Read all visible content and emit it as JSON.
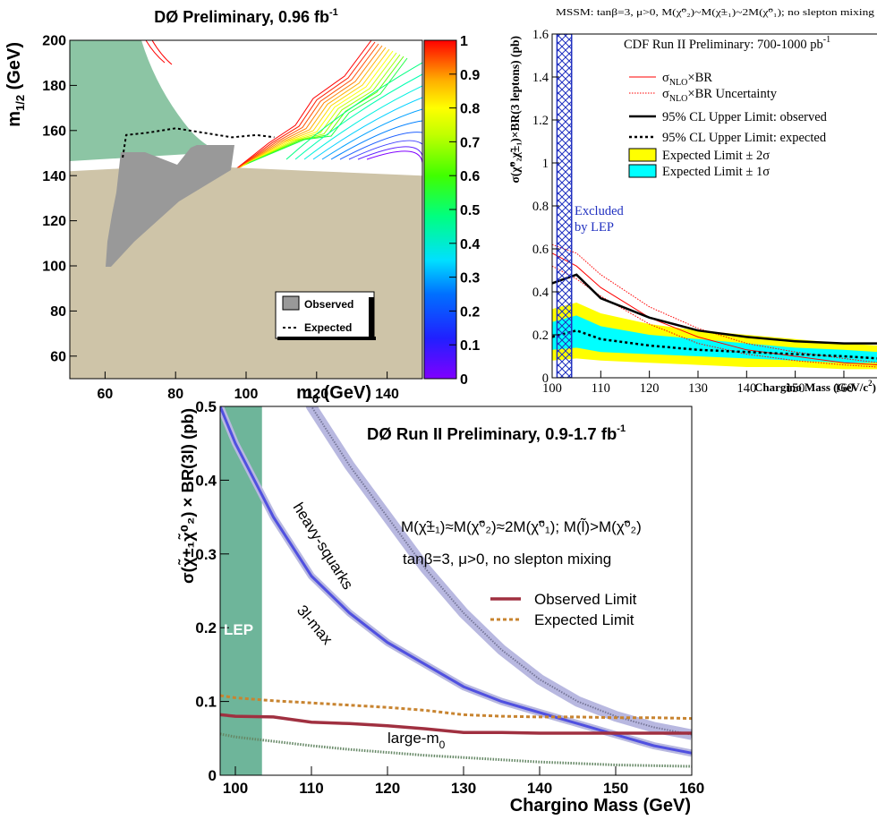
{
  "chart_data": [
    {
      "type": "heatmap",
      "title": "DØ Preliminary, 0.96 fb",
      "title_sup": "-1",
      "xlabel": "m",
      "xlabel_sub": "0",
      "xlabel_unit": " (GeV)",
      "ylabel": "m",
      "ylabel_sub": "1/2",
      "ylabel_unit": " (GeV)",
      "xlim": [
        50,
        150
      ],
      "ylim": [
        50,
        200
      ],
      "xticks": [
        "60",
        "80",
        "100",
        "120",
        "140"
      ],
      "yticks": [
        "60",
        "80",
        "100",
        "120",
        "140",
        "160",
        "180",
        "200"
      ],
      "colorbar_ticks": [
        "0",
        "0.1",
        "0.2",
        "0.3",
        "0.4",
        "0.5",
        "0.6",
        "0.7",
        "0.8",
        "0.9",
        "1"
      ],
      "colorbar_range": [
        0,
        1
      ],
      "legend": {
        "observed": "Observed",
        "expected": "Expected"
      },
      "regions": {
        "lep_theory_excluded_color": "#8cc5a4",
        "beige_excluded_color": "#cec4a8",
        "observed_excluded_color": "#999999"
      },
      "expected_contour": {
        "x": [
          65,
          66,
          72,
          80,
          88,
          96,
          103,
          108
        ],
        "y": [
          148,
          158,
          159,
          161,
          159,
          157,
          158,
          157
        ]
      },
      "beige_boundary": {
        "x": [
          50,
          63,
          75,
          90,
          105,
          120,
          135,
          150
        ],
        "y": [
          142,
          143,
          144,
          144,
          143,
          142,
          141,
          140
        ]
      }
    },
    {
      "type": "line",
      "header": "MSSM: tanβ=3, μ>0, M(χ̃",
      "header_full": "MSSM: tanβ=3, μ>0, M(χ̃⁰₂)~M(χ̃±₁)~2M(χ̃⁰₁); no slepton mixing",
      "title": "CDF Run II Preliminary: 700-1000 pb",
      "title_sup": "-1",
      "xlabel": "Chargino Mass (GeV/c",
      "xlabel_sup": "2",
      "xlabel_end": ")",
      "ylabel": "σ(χ̃⁰₂χ̃±₁)×BR(3 leptons) (pb)",
      "xlim": [
        100,
        167
      ],
      "ylim": [
        0,
        1.6
      ],
      "xticks": [
        "100",
        "110",
        "120",
        "130",
        "140",
        "150",
        "160"
      ],
      "yticks": [
        "0",
        "0.2",
        "0.4",
        "0.6",
        "0.8",
        "1",
        "1.2",
        "1.4",
        "1.6"
      ],
      "excluded_label_1": "Excluded",
      "excluded_label_2": "by LEP",
      "lep_excluded_range": [
        101,
        104
      ],
      "legend": [
        {
          "label": "σ",
          "sub": "NLO",
          "rest": "×BR",
          "style": "solid-red"
        },
        {
          "label": "σ",
          "sub": "NLO",
          "rest": "×BR Uncertainty",
          "style": "dotted-red"
        },
        {
          "label": "95% CL Upper Limit: observed",
          "style": "solid-black"
        },
        {
          "label": "95% CL Upper Limit: expected",
          "style": "dashed-black"
        },
        {
          "label": "Expected Limit ± 2σ",
          "style": "fill-yellow"
        },
        {
          "label": "Expected Limit ± 1σ",
          "style": "fill-cyan"
        }
      ],
      "colors": {
        "yellow": "#ffff00",
        "cyan": "#00ffff",
        "red": "#ff0000",
        "lep": "#2020c0"
      },
      "x": [
        100,
        105,
        110,
        120,
        130,
        140,
        150,
        160,
        167
      ],
      "series": [
        {
          "name": "observed",
          "values": [
            0.44,
            0.48,
            0.37,
            0.28,
            0.22,
            0.19,
            0.17,
            0.16,
            0.16
          ]
        },
        {
          "name": "expected",
          "values": [
            0.19,
            0.22,
            0.18,
            0.15,
            0.13,
            0.12,
            0.11,
            0.1,
            0.09
          ]
        },
        {
          "name": "sigma_nlo_br",
          "values": [
            0.58,
            0.52,
            0.42,
            0.28,
            0.19,
            0.13,
            0.1,
            0.07,
            0.06
          ]
        },
        {
          "name": "unc_upper",
          "values": [
            0.62,
            0.58,
            0.48,
            0.33,
            0.23,
            0.16,
            0.12,
            0.09,
            0.07
          ]
        },
        {
          "name": "unc_lower",
          "values": [
            0.52,
            0.46,
            0.38,
            0.25,
            0.16,
            0.11,
            0.08,
            0.06,
            0.05
          ]
        },
        {
          "name": "band2_upper",
          "values": [
            0.32,
            0.35,
            0.3,
            0.25,
            0.22,
            0.2,
            0.18,
            0.16,
            0.15
          ]
        },
        {
          "name": "band2_lower",
          "values": [
            0.08,
            0.09,
            0.08,
            0.07,
            0.06,
            0.05,
            0.05,
            0.04,
            0.04
          ]
        },
        {
          "name": "band1_upper",
          "values": [
            0.26,
            0.29,
            0.24,
            0.2,
            0.18,
            0.16,
            0.14,
            0.13,
            0.12
          ]
        },
        {
          "name": "band1_lower",
          "values": [
            0.13,
            0.14,
            0.12,
            0.11,
            0.1,
            0.09,
            0.08,
            0.07,
            0.07
          ]
        }
      ]
    },
    {
      "type": "line",
      "title": "DØ Run II Preliminary, 0.9-1.7 fb",
      "title_sup": "-1",
      "model_line_1": "M(χ̃±₁)≈M(χ̃⁰₂)≈2M(χ̃⁰₁); M(l̃)>M(χ̃⁰₂)",
      "model_line_2": "tanβ=3, μ>0, no slepton mixing",
      "xlabel": "Chargino Mass (GeV)",
      "ylabel": "σ(χ̃±₁χ̃⁰₂) × BR(3l) (pb)",
      "xlim": [
        98,
        160
      ],
      "ylim": [
        0,
        0.5
      ],
      "xticks": [
        "100",
        "110",
        "120",
        "130",
        "140",
        "150",
        "160"
      ],
      "yticks": [
        "0",
        "0.1",
        "0.2",
        "0.3",
        "0.4",
        "0.5"
      ],
      "lep_label": "LEP",
      "lep_range": [
        98,
        103.5
      ],
      "curve_labels": {
        "heavy_squarks": "heavy-squarks",
        "max_3l": "3l-max",
        "large_m0": "large-m",
        "large_m0_sub": "0"
      },
      "legend": [
        {
          "label": "Observed Limit",
          "style": "solid-darkred"
        },
        {
          "label": "Expected Limit",
          "style": "dashed-orange"
        }
      ],
      "colors": {
        "observed": "#a03040",
        "expected": "#c88430",
        "lep": "#6eb59a",
        "theory": "#5050e0"
      },
      "x": [
        98,
        100,
        105,
        110,
        115,
        120,
        125,
        130,
        135,
        140,
        145,
        150,
        155,
        160
      ],
      "series": [
        {
          "name": "observed",
          "values": [
            0.082,
            0.08,
            0.079,
            0.072,
            0.07,
            0.067,
            0.063,
            0.058,
            0.058,
            0.057,
            0.057,
            0.057,
            0.057,
            0.057
          ]
        },
        {
          "name": "expected",
          "values": [
            0.108,
            0.105,
            0.101,
            0.098,
            0.095,
            0.092,
            0.088,
            0.082,
            0.08,
            0.079,
            0.079,
            0.078,
            0.078,
            0.077
          ]
        },
        {
          "name": "3l-max",
          "values": [
            0.5,
            0.45,
            0.35,
            0.27,
            0.22,
            0.18,
            0.15,
            0.12,
            0.1,
            0.085,
            0.07,
            0.055,
            0.04,
            0.03
          ]
        },
        {
          "name": "heavy-squarks",
          "values": [
            null,
            null,
            null,
            0.5,
            0.42,
            0.35,
            0.28,
            0.22,
            0.17,
            0.13,
            0.1,
            0.08,
            0.065,
            0.055
          ]
        },
        {
          "name": "large-m0",
          "values": [
            0.056,
            0.052,
            0.046,
            0.04,
            0.035,
            0.031,
            0.027,
            0.024,
            0.021,
            0.018,
            0.016,
            0.014,
            0.013,
            0.012
          ]
        }
      ]
    }
  ]
}
